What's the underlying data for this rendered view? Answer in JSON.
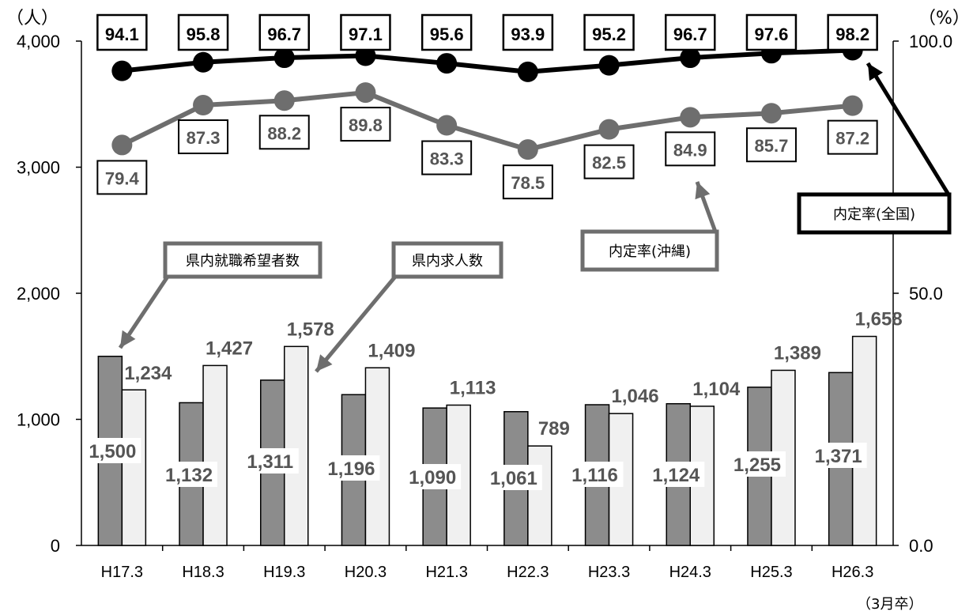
{
  "chart_data": {
    "type": "bar+line",
    "categories": [
      "H17.3",
      "H18.3",
      "H19.3",
      "H20.3",
      "H21.3",
      "H22.3",
      "H23.3",
      "H24.3",
      "H25.3",
      "H26.3"
    ],
    "bar_series": [
      {
        "name": "県内就職希望者数",
        "values": [
          1500,
          1132,
          1311,
          1196,
          1090,
          1061,
          1116,
          1124,
          1255,
          1371
        ],
        "labels": [
          "1,500",
          "1,132",
          "1,311",
          "1,196",
          "1,090",
          "1,061",
          "1,116",
          "1,124",
          "1,255",
          "1,371"
        ],
        "color": "#8c8c8c"
      },
      {
        "name": "県内求人数",
        "values": [
          1234,
          1427,
          1578,
          1409,
          1113,
          789,
          1046,
          1104,
          1389,
          1658
        ],
        "labels": [
          "1,234",
          "1,427",
          "1,578",
          "1,409",
          "1,113",
          "789",
          "1,046",
          "1,104",
          "1,389",
          "1,658"
        ],
        "color": "#f0f0f0"
      }
    ],
    "line_series": [
      {
        "name": "内定率(全国)",
        "values": [
          94.1,
          95.8,
          96.7,
          97.1,
          95.6,
          93.9,
          95.2,
          96.7,
          97.6,
          98.2
        ],
        "labels": [
          "94.1",
          "95.8",
          "96.7",
          "97.1",
          "95.6",
          "93.9",
          "95.2",
          "96.7",
          "97.6",
          "98.2"
        ],
        "color": "#000000"
      },
      {
        "name": "内定率(沖縄)",
        "values": [
          79.4,
          87.3,
          88.2,
          89.8,
          83.3,
          78.5,
          82.5,
          84.9,
          85.7,
          87.2
        ],
        "labels": [
          "79.4",
          "87.3",
          "88.2",
          "89.8",
          "83.3",
          "78.5",
          "82.5",
          "84.9",
          "85.7",
          "87.2"
        ],
        "color": "#6e6e6e"
      }
    ],
    "y_left": {
      "unit": "（人）",
      "ticks": [
        "0",
        "1,000",
        "2,000",
        "3,000",
        "4,000"
      ],
      "tick_values": [
        0,
        1000,
        2000,
        3000,
        4000
      ],
      "range": [
        0,
        4000
      ]
    },
    "y_right": {
      "unit": "（%）",
      "ticks": [
        "0.0",
        "50.0",
        "100.0"
      ],
      "tick_values": [
        0,
        50,
        100
      ],
      "range": [
        0,
        100
      ]
    },
    "x_note": "（3月卒）",
    "grid": false
  },
  "callouts": {
    "jobseekers": "県内就職希望者数",
    "openings": "県内求人数",
    "okinawa_rate": "内定率(沖縄)",
    "national_rate": "内定率(全国)"
  }
}
